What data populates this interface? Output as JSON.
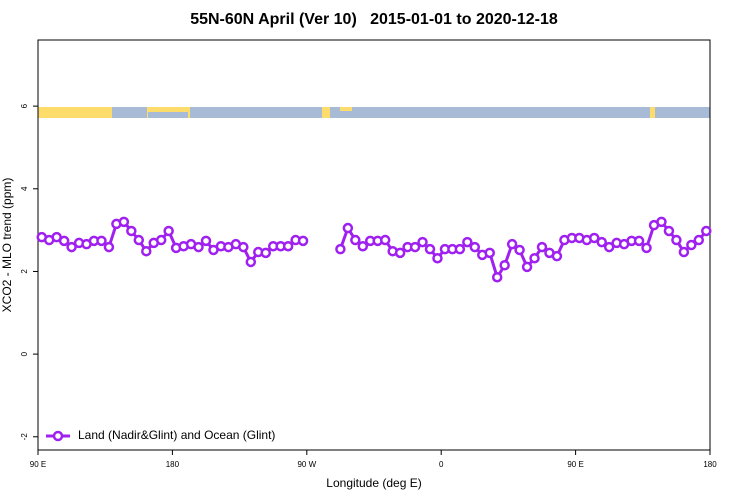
{
  "chart_data": {
    "type": "line",
    "title": "55N-60N April (Ver 10)   2015-01-01 to 2020-12-18",
    "xlabel": "Longitude (deg E)",
    "ylabel": "XCO2 - MLO trend (ppm)",
    "xlim": [
      90,
      540
    ],
    "xticks": [
      {
        "value": 90,
        "label": "90 E"
      },
      180,
      {
        "value": 270,
        "label": "90 W"
      },
      {
        "value": 360,
        "label": "0"
      },
      {
        "value": 450,
        "label": "90 E"
      },
      {
        "value": 540,
        "label": "180"
      }
    ],
    "ylim": [
      -2.32,
      7.6
    ],
    "yticks": [
      -2,
      0,
      2,
      4,
      6
    ],
    "legend": "bottom-left",
    "x": [
      92.5,
      97.5,
      102.5,
      107.5,
      112.5,
      117.5,
      122.5,
      127.5,
      132.5,
      137.5,
      142.5,
      147.5,
      152.5,
      157.5,
      162.5,
      167.5,
      172.5,
      177.5,
      182.5,
      187.5,
      192.5,
      197.5,
      202.5,
      207.5,
      212.5,
      217.5,
      222.5,
      227.5,
      232.5,
      237.5,
      242.5,
      247.5,
      252.5,
      257.5,
      262.5,
      267.5,
      272.5,
      277.5,
      282.5,
      287.5,
      292.5,
      297.5,
      302.5,
      307.5,
      312.5,
      317.5,
      322.5,
      327.5,
      332.5,
      337.5,
      342.5,
      347.5,
      352.5,
      357.5,
      362.5,
      367.5,
      372.5,
      377.5,
      382.5,
      387.5,
      392.5,
      397.5,
      402.5,
      407.5,
      412.5,
      417.5,
      422.5,
      427.5,
      432.5,
      437.5,
      442.5,
      447.5,
      452.5,
      457.5,
      462.5,
      467.5,
      472.5,
      477.5,
      482.5,
      487.5,
      492.5,
      497.5,
      502.5,
      507.5,
      512.5,
      517.5,
      522.5,
      527.5,
      532.5,
      537.5
    ],
    "series": [
      {
        "name": "Land (Nadir&Glint) and Ocean (Glint)",
        "color": "#a020f0",
        "values": [
          2.83,
          2.76,
          2.83,
          2.74,
          2.59,
          2.69,
          2.66,
          2.74,
          2.74,
          2.59,
          3.15,
          3.2,
          2.98,
          2.76,
          2.49,
          2.69,
          2.76,
          2.98,
          2.57,
          2.61,
          2.66,
          2.59,
          2.74,
          2.52,
          2.61,
          2.59,
          2.66,
          2.59,
          2.23,
          2.47,
          2.45,
          2.61,
          2.61,
          2.61,
          2.76,
          2.74,
          null,
          null,
          null,
          null,
          2.54,
          3.05,
          2.76,
          2.61,
          2.74,
          2.74,
          2.76,
          2.49,
          2.45,
          2.59,
          2.59,
          2.71,
          2.54,
          2.32,
          2.54,
          2.54,
          2.54,
          2.71,
          2.59,
          2.4,
          2.45,
          1.86,
          2.15,
          2.66,
          2.52,
          2.11,
          2.32,
          2.59,
          2.45,
          2.37,
          2.76,
          2.81,
          2.81,
          2.76,
          2.81,
          2.71,
          2.59,
          2.69,
          2.66,
          2.74,
          2.74,
          2.57,
          3.12,
          3.2,
          2.98,
          2.76,
          2.47,
          2.64,
          2.76,
          2.98
        ]
      }
    ]
  }
}
